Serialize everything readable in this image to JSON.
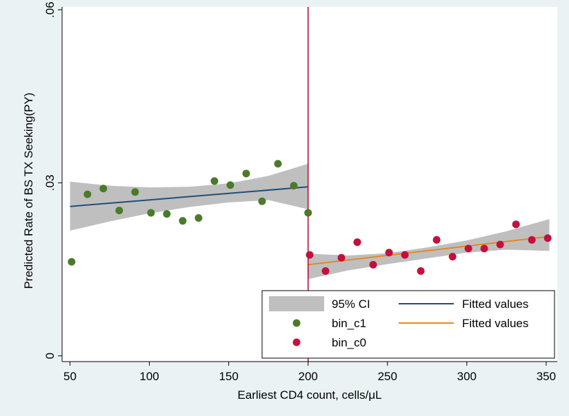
{
  "chart_data": {
    "type": "scatter",
    "title": "",
    "xlabel": "Earliest CD4 count, cells/μL",
    "ylabel": "Predicted Rate of BS TX Seeking(PY)",
    "xlim": [
      45,
      357
    ],
    "ylim": [
      -0.001,
      0.0605
    ],
    "x_ticks": [
      50,
      100,
      150,
      200,
      250,
      300,
      350
    ],
    "x_tick_labels": [
      "50",
      "100",
      "150",
      "200",
      "250",
      "300",
      "350"
    ],
    "y_ticks": [
      0,
      0.03,
      0.06
    ],
    "y_tick_labels": [
      "0",
      ".03",
      ".06"
    ],
    "grid": false,
    "cutoff_x": 200,
    "legend": {
      "position": "bottom-right",
      "entries": [
        "95% CI",
        "Fitted values",
        "bin_c1",
        "Fitted values",
        "bin_c0"
      ]
    },
    "series": [
      {
        "name": "bin_c1",
        "kind": "scatter",
        "color": "#4d7a2a",
        "points": [
          [
            51,
            0.0163
          ],
          [
            61,
            0.028
          ],
          [
            71,
            0.029
          ],
          [
            81,
            0.0252
          ],
          [
            91,
            0.0284
          ],
          [
            101,
            0.0248
          ],
          [
            111,
            0.0246
          ],
          [
            121,
            0.0234
          ],
          [
            131,
            0.0239
          ],
          [
            141,
            0.0303
          ],
          [
            151,
            0.0296
          ],
          [
            161,
            0.0316
          ],
          [
            171,
            0.0268
          ],
          [
            181,
            0.0333
          ],
          [
            191,
            0.0295
          ],
          [
            200,
            0.0248
          ]
        ]
      },
      {
        "name": "bin_c0",
        "kind": "scatter",
        "color": "#c4103c",
        "points": [
          [
            201,
            0.0175
          ],
          [
            211,
            0.0147
          ],
          [
            221,
            0.017
          ],
          [
            231,
            0.0197
          ],
          [
            241,
            0.0158
          ],
          [
            251,
            0.0179
          ],
          [
            261,
            0.0175
          ],
          [
            271,
            0.0147
          ],
          [
            281,
            0.0201
          ],
          [
            291,
            0.0172
          ],
          [
            301,
            0.0186
          ],
          [
            311,
            0.0186
          ],
          [
            321,
            0.0193
          ],
          [
            331,
            0.0228
          ],
          [
            341,
            0.0201
          ],
          [
            351,
            0.0204
          ]
        ]
      },
      {
        "name": "Fitted values",
        "kind": "line",
        "color": "#1f4e79",
        "points": [
          [
            50,
            0.0259
          ],
          [
            200,
            0.0293
          ]
        ]
      },
      {
        "name": "Fitted values",
        "kind": "line",
        "color": "#e8871e",
        "points": [
          [
            200,
            0.0158
          ],
          [
            352,
            0.0207
          ]
        ]
      },
      {
        "name": "95% CI",
        "kind": "band",
        "color": "#bfbfbf",
        "x": [
          50,
          75,
          100,
          125,
          150,
          175,
          200
        ],
        "upper": [
          0.0302,
          0.0295,
          0.0292,
          0.0293,
          0.0299,
          0.0312,
          0.0333
        ],
        "lower": [
          0.0217,
          0.0233,
          0.0247,
          0.0258,
          0.0266,
          0.027,
          0.0254
        ]
      },
      {
        "name": "95% CI",
        "kind": "band",
        "color": "#bfbfbf",
        "x": [
          200,
          225,
          250,
          275,
          300,
          325,
          352
        ],
        "upper": [
          0.0177,
          0.0174,
          0.0178,
          0.0188,
          0.02,
          0.0216,
          0.0237
        ],
        "lower": [
          0.0133,
          0.0148,
          0.0159,
          0.0169,
          0.0179,
          0.0184,
          0.0182
        ]
      }
    ]
  },
  "colors": {
    "page_background": "#eaf2f3",
    "plot_background": "#ffffff",
    "cutoff_line": "#b0103a"
  }
}
